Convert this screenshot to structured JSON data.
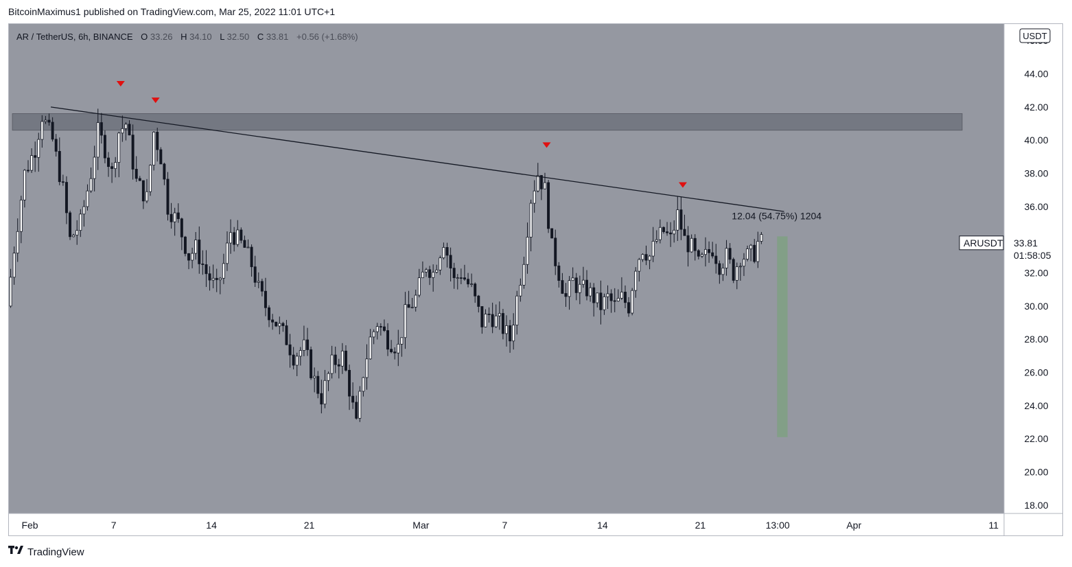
{
  "header": {
    "publisher_line": "BitcoinMaximus1 published on TradingView.com, Mar 25, 2022 11:01 UTC+1"
  },
  "footer": {
    "brand": "TradingView",
    "logo_icon": "tradingview-logo-icon"
  },
  "colors": {
    "plot_bg": "#9598a1",
    "candle_up": "#ffffff",
    "candle_down": "#131722",
    "wick": "#131722",
    "zone": "#6a6d78",
    "marker": "#e01010",
    "target_bar": "#7fa083"
  },
  "chart_data": {
    "type": "candlestick",
    "legend": {
      "symbol": "AR / TetherUS, 6h, BINANCE",
      "o_label": "O",
      "o_value": "33.26",
      "h_label": "H",
      "h_value": "34.10",
      "l_label": "L",
      "l_value": "32.50",
      "c_label": "C",
      "c_value": "33.81",
      "change": "+0.56 (+1.68%)"
    },
    "currency_label": "USDT",
    "y_range": [
      17.5,
      47.0
    ],
    "y_ticks": [
      "46.00",
      "44.00",
      "42.00",
      "40.00",
      "38.00",
      "36.00",
      "32.00",
      "30.00",
      "28.00",
      "26.00",
      "24.00",
      "22.00",
      "20.00",
      "18.00"
    ],
    "x_range": [
      "2022-01-30T12:00",
      "2022-04-11T18:00"
    ],
    "x_ticks": [
      {
        "t": "2022-02-01",
        "label": "Feb"
      },
      {
        "t": "2022-02-07",
        "label": "7"
      },
      {
        "t": "2022-02-14",
        "label": "14"
      },
      {
        "t": "2022-02-21",
        "label": "21"
      },
      {
        "t": "2022-03-01",
        "label": "Mar"
      },
      {
        "t": "2022-03-07",
        "label": "7"
      },
      {
        "t": "2022-03-14",
        "label": "14"
      },
      {
        "t": "2022-03-21",
        "label": "21"
      },
      {
        "t": "2022-03-26T13:00",
        "label": "13:00"
      },
      {
        "t": "2022-04-01",
        "label": "Apr"
      },
      {
        "t": "2022-04-11",
        "label": "11"
      }
    ],
    "price_badge": {
      "symbol": "ARUSDT",
      "price": "33.81",
      "countdown": "01:58:05"
    },
    "resistance_zone": {
      "from": "2022-01-30T18:00",
      "to": "2022-04-08T18:00",
      "low": 40.6,
      "high": 41.6
    },
    "descending_trendline": [
      {
        "t": "2022-02-02T12:00",
        "price": 42.0
      },
      {
        "t": "2022-03-27",
        "price": 35.7
      }
    ],
    "top_markers": [
      {
        "t": "2022-02-07T12:00",
        "price": 43.4
      },
      {
        "t": "2022-02-10",
        "price": 42.4
      },
      {
        "t": "2022-03-10",
        "price": 39.7
      },
      {
        "t": "2022-03-19T18:00",
        "price": 37.3
      }
    ],
    "target_measure": {
      "from": "2022-03-26T12:00",
      "to": "2022-03-27T06:00",
      "low": 22.1,
      "high": 34.2,
      "label": "12.04 (54.75%) 1204"
    },
    "anchors": [
      [
        "2022-01-30T12:00",
        30.0
      ],
      [
        "2022-01-31",
        33.5
      ],
      [
        "2022-01-31T18:00",
        38.0
      ],
      [
        "2022-02-01T12:00",
        39.5
      ],
      [
        "2022-02-02",
        41.5
      ],
      [
        "2022-02-02T18:00",
        40.0
      ],
      [
        "2022-02-03",
        39.0
      ],
      [
        "2022-02-03T12:00",
        37.0
      ],
      [
        "2022-02-04",
        34.0
      ],
      [
        "2022-02-04T18:00",
        35.0
      ],
      [
        "2022-02-05T12:00",
        38.0
      ],
      [
        "2022-02-06",
        40.5
      ],
      [
        "2022-02-06T12:00",
        39.5
      ],
      [
        "2022-02-07",
        38.0
      ],
      [
        "2022-02-07T12:00",
        40.5
      ],
      [
        "2022-02-08",
        41.0
      ],
      [
        "2022-02-08T18:00",
        37.5
      ],
      [
        "2022-02-09T12:00",
        36.5
      ],
      [
        "2022-02-10",
        40.5
      ],
      [
        "2022-02-10T12:00",
        39.0
      ],
      [
        "2022-02-11",
        36.0
      ],
      [
        "2022-02-11T18:00",
        35.0
      ],
      [
        "2022-02-12T12:00",
        33.0
      ],
      [
        "2022-02-13",
        33.5
      ],
      [
        "2022-02-13T18:00",
        32.0
      ],
      [
        "2022-02-14T12:00",
        31.0
      ],
      [
        "2022-02-15",
        32.5
      ],
      [
        "2022-02-15T12:00",
        34.5
      ],
      [
        "2022-02-16",
        34.0
      ],
      [
        "2022-02-16T12:00",
        33.5
      ],
      [
        "2022-02-17",
        32.5
      ],
      [
        "2022-02-17T12:00",
        31.0
      ],
      [
        "2022-02-18",
        30.0
      ],
      [
        "2022-02-18T18:00",
        29.0
      ],
      [
        "2022-02-19T12:00",
        28.0
      ],
      [
        "2022-02-20",
        27.0
      ],
      [
        "2022-02-20T18:00",
        27.5
      ],
      [
        "2022-02-21T12:00",
        25.5
      ],
      [
        "2022-02-22",
        24.5
      ],
      [
        "2022-02-22T18:00",
        26.5
      ],
      [
        "2022-02-23T12:00",
        27.0
      ],
      [
        "2022-02-24",
        25.0
      ],
      [
        "2022-02-24T12:00",
        22.8
      ],
      [
        "2022-02-25",
        26.0
      ],
      [
        "2022-02-25T12:00",
        28.0
      ],
      [
        "2022-02-26",
        29.0
      ],
      [
        "2022-02-26T18:00",
        28.0
      ],
      [
        "2022-02-27T12:00",
        27.5
      ],
      [
        "2022-02-28",
        29.5
      ],
      [
        "2022-02-28T18:00",
        30.5
      ],
      [
        "2022-03-01T12:00",
        32.5
      ],
      [
        "2022-03-02",
        32.0
      ],
      [
        "2022-03-02T18:00",
        34.0
      ],
      [
        "2022-03-03T12:00",
        31.5
      ],
      [
        "2022-03-04",
        32.0
      ],
      [
        "2022-03-04T18:00",
        31.0
      ],
      [
        "2022-03-05T12:00",
        29.0
      ],
      [
        "2022-03-06",
        29.5
      ],
      [
        "2022-03-06T18:00",
        29.0
      ],
      [
        "2022-03-07T12:00",
        28.0
      ],
      [
        "2022-03-08",
        30.5
      ],
      [
        "2022-03-08T12:00",
        33.0
      ],
      [
        "2022-03-09",
        36.5
      ],
      [
        "2022-03-09T12:00",
        38.0
      ],
      [
        "2022-03-10",
        37.0
      ],
      [
        "2022-03-10T12:00",
        33.5
      ],
      [
        "2022-03-11",
        32.0
      ],
      [
        "2022-03-11T12:00",
        30.5
      ],
      [
        "2022-03-12",
        31.5
      ],
      [
        "2022-03-12T12:00",
        31.0
      ],
      [
        "2022-03-13",
        31.0
      ],
      [
        "2022-03-13T12:00",
        30.5
      ],
      [
        "2022-03-14",
        30.0
      ],
      [
        "2022-03-14T12:00",
        30.5
      ],
      [
        "2022-03-15",
        30.0
      ],
      [
        "2022-03-15T12:00",
        30.5
      ],
      [
        "2022-03-16",
        30.0
      ],
      [
        "2022-03-16T12:00",
        32.5
      ],
      [
        "2022-03-17",
        33.5
      ],
      [
        "2022-03-17T12:00",
        33.0
      ],
      [
        "2022-03-18",
        34.0
      ],
      [
        "2022-03-18T12:00",
        34.5
      ],
      [
        "2022-03-19",
        34.0
      ],
      [
        "2022-03-19T12:00",
        35.5
      ],
      [
        "2022-03-20",
        34.0
      ],
      [
        "2022-03-20T12:00",
        33.5
      ],
      [
        "2022-03-21",
        32.5
      ],
      [
        "2022-03-21T12:00",
        33.0
      ],
      [
        "2022-03-22",
        33.5
      ],
      [
        "2022-03-22T12:00",
        32.5
      ],
      [
        "2022-03-23",
        33.0
      ],
      [
        "2022-03-23T12:00",
        32.0
      ],
      [
        "2022-03-24",
        33.0
      ],
      [
        "2022-03-24T12:00",
        33.0
      ],
      [
        "2022-03-25",
        33.2
      ],
      [
        "2022-03-25T06:00",
        33.81
      ]
    ]
  }
}
